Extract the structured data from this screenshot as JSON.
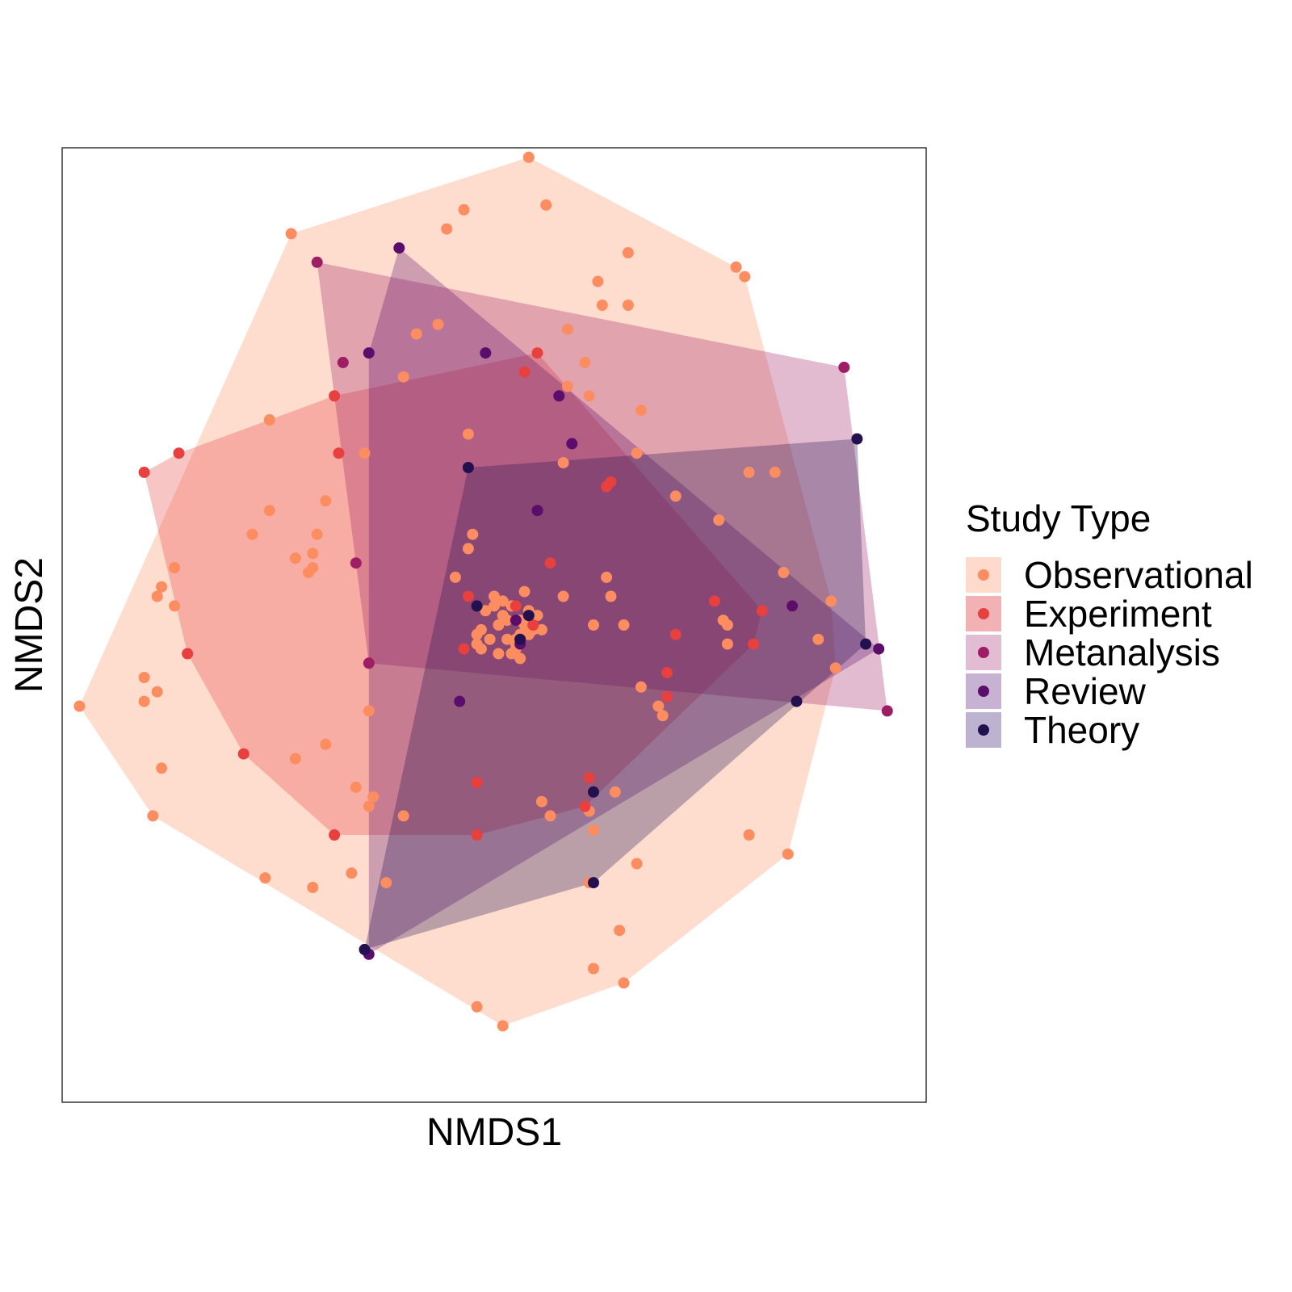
{
  "chart_data": {
    "type": "scatter",
    "title": "",
    "xlabel": "NMDS1",
    "ylabel": "NMDS2",
    "xlim": [
      -1.0,
      1.0
    ],
    "ylim": [
      -1.0,
      1.0
    ],
    "grid": false,
    "ticks": false,
    "legend": {
      "title": "Study Type",
      "placement": "right"
    },
    "hulls_shown": true,
    "series": [
      {
        "name": "Observational",
        "color": "#FB8D61",
        "fill": "#FDDACB",
        "x": [
          0.08,
          0.12,
          -0.07,
          -0.11,
          -0.47,
          0.31,
          0.56,
          0.58,
          0.24,
          0.25,
          0.31,
          -0.13,
          0.17,
          -0.18,
          0.21,
          -0.21,
          0.17,
          0.22,
          0.34,
          -0.52,
          -0.06,
          0.33,
          -0.3,
          -0.52,
          0.16,
          0.52,
          0.59,
          0.65,
          0.42,
          -0.39,
          -0.56,
          -0.05,
          -0.06,
          -0.42,
          -0.41,
          -0.46,
          -0.43,
          -0.78,
          -0.77,
          -0.74,
          -0.74,
          0.26,
          0.23,
          0.27,
          -0.09,
          -0.42,
          0.53,
          0.16,
          0.67,
          0.54,
          0.69,
          0.54,
          0.3,
          0.78,
          0.75,
          0.79,
          -0.96,
          -0.81,
          -0.78,
          -0.81,
          -0.39,
          -0.46,
          -0.29,
          -0.32,
          -0.77,
          -0.29,
          -0.21,
          0.39,
          0.38,
          -0.28,
          -0.79,
          -0.42,
          0.11,
          0.28,
          0.13,
          0.22,
          0.23,
          0.59,
          0.68,
          0.33,
          -0.33,
          -0.53,
          -0.25,
          -0.04,
          0.02,
          0.23,
          0.29,
          0.3,
          0.22,
          0.34,
          -0.04,
          0.06,
          0.03,
          0.11,
          0.05,
          0.01,
          -0.02,
          0.04,
          -0.03,
          0.02,
          0.08,
          0.06,
          0.0,
          0.05,
          0.09,
          -0.01,
          0.03,
          0.07,
          -0.04,
          0.1,
          0.04,
          0.0,
          0.06,
          -0.03,
          0.08,
          0.02,
          0.01,
          0.05,
          0.07
        ],
        "y": [
          0.98,
          0.88,
          0.87,
          0.83,
          0.82,
          0.78,
          0.75,
          0.73,
          0.72,
          0.67,
          0.67,
          0.63,
          0.62,
          0.61,
          0.55,
          0.52,
          0.5,
          0.48,
          0.45,
          0.43,
          0.4,
          0.36,
          0.36,
          0.24,
          0.34,
          0.22,
          0.32,
          0.32,
          0.27,
          0.26,
          0.19,
          0.19,
          0.16,
          0.15,
          0.19,
          0.14,
          0.11,
          0.06,
          0.08,
          0.12,
          0.04,
          0.1,
          0.0,
          0.06,
          0.1,
          0.12,
          0.01,
          0.06,
          0.11,
          0.0,
          0.04,
          -0.04,
          0.0,
          0.05,
          -0.03,
          -0.09,
          -0.17,
          -0.11,
          -0.14,
          -0.16,
          -0.25,
          -0.28,
          -0.38,
          -0.34,
          -0.3,
          -0.18,
          -0.4,
          -0.19,
          -0.17,
          -0.36,
          -0.4,
          -0.55,
          -0.37,
          -0.35,
          -0.4,
          -0.39,
          -0.43,
          -0.44,
          -0.48,
          -0.5,
          -0.52,
          -0.53,
          -0.54,
          -0.8,
          -0.84,
          -0.72,
          -0.64,
          -0.75,
          -0.54,
          -0.13,
          -0.04,
          -0.02,
          -0.03,
          -0.01,
          -0.05,
          0.0,
          0.03,
          -0.06,
          -0.01,
          0.02,
          -0.02,
          0.01,
          0.04,
          -0.04,
          -0.01,
          -0.03,
          0.01,
          0.0,
          -0.02,
          0.02,
          0.04,
          0.06,
          -0.07,
          -0.05,
          0.03,
          0.05,
          -0.06,
          -0.03,
          0.07
        ]
      },
      {
        "name": "Experiment",
        "color": "#E83F3F",
        "fill": "#F2B2B5",
        "x": [
          -0.37,
          -0.73,
          -0.81,
          -0.36,
          0.09,
          0.05,
          0.26,
          0.27,
          0.13,
          -0.06,
          -0.07,
          -0.71,
          -0.58,
          -0.37,
          -0.04,
          -0.04,
          0.1,
          0.07,
          0.4,
          0.4,
          0.42,
          0.51,
          0.6,
          0.62,
          0.22,
          0.21
        ],
        "y": [
          0.48,
          0.36,
          0.32,
          0.36,
          0.0,
          0.04,
          0.29,
          0.3,
          0.13,
          0.06,
          -0.05,
          -0.06,
          -0.27,
          -0.44,
          -0.44,
          -0.33,
          0.57,
          0.53,
          -0.1,
          -0.15,
          -0.02,
          0.05,
          -0.04,
          0.03,
          -0.32,
          -0.38
        ]
      },
      {
        "name": "Metanalysis",
        "color": "#9E1E64",
        "fill": "#E2BCD3",
        "x": [
          -0.41,
          -0.35,
          0.81,
          0.91,
          -0.32,
          -0.29
        ],
        "y": [
          0.76,
          0.55,
          0.54,
          -0.18,
          0.13,
          -0.08
        ]
      },
      {
        "name": "Review",
        "color": "#5B0D6B",
        "fill": "#C8B2D3",
        "x": [
          -0.22,
          -0.29,
          -0.02,
          0.15,
          0.18,
          0.1,
          0.69,
          0.89,
          0.06,
          -0.08,
          -0.29,
          0.05
        ],
        "y": [
          0.79,
          0.57,
          0.57,
          0.48,
          0.38,
          0.24,
          0.04,
          -0.05,
          -0.04,
          -0.16,
          -0.69,
          0.01
        ]
      },
      {
        "name": "Theory",
        "color": "#22104F",
        "fill": "#BDB3D1",
        "x": [
          -0.06,
          0.84,
          0.7,
          0.23,
          0.23,
          0.06,
          -0.04,
          0.08,
          -0.3,
          0.86
        ],
        "y": [
          0.33,
          0.39,
          -0.16,
          -0.35,
          -0.54,
          -0.03,
          0.04,
          0.02,
          -0.68,
          -0.04
        ]
      }
    ]
  }
}
